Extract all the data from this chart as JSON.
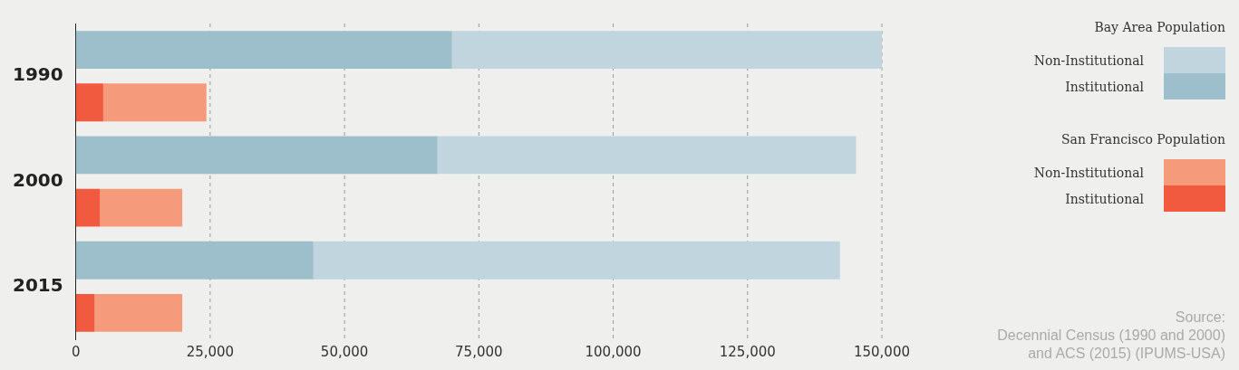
{
  "chart_data": {
    "type": "bar",
    "orientation": "horizontal",
    "stacked": true,
    "categories": [
      "1990",
      null,
      "2000",
      null,
      "2015",
      null
    ],
    "series": [
      {
        "name": "Institutional",
        "color": "#9dbfcc",
        "values": [
          70000,
          null,
          67300,
          null,
          44200,
          null
        ]
      },
      {
        "name": "Non-Institutional",
        "color": "#c1d5df",
        "values": [
          80300,
          null,
          77900,
          null,
          98000,
          null
        ]
      },
      {
        "name": "Institutional",
        "color": "#f15a3e",
        "values": [
          null,
          5100,
          null,
          4500,
          null,
          3500
        ]
      },
      {
        "name": "Non-Institutional",
        "color": "#f59b7b",
        "values": [
          null,
          19200,
          null,
          15300,
          null,
          16300
        ]
      }
    ],
    "xlim": [
      0,
      150000
    ],
    "xticks": [
      0,
      {
        "value": 25000,
        "label": "25,000"
      },
      {
        "value": 50000,
        "label": "50,000"
      },
      {
        "value": 75000,
        "label": "75,000"
      },
      {
        "value": 100000,
        "label": "100,000"
      },
      {
        "value": 125000,
        "label": "125,000"
      },
      {
        "value": 150000,
        "label": "150,000"
      }
    ],
    "grid": "x",
    "legend": "right",
    "annotations": [
      "Bay Area Population",
      "San Francisco Population",
      "Source:\nDecennial Census (1990 and 2000)\nand ACS (2015) (IPUMS-USA)"
    ]
  }
}
